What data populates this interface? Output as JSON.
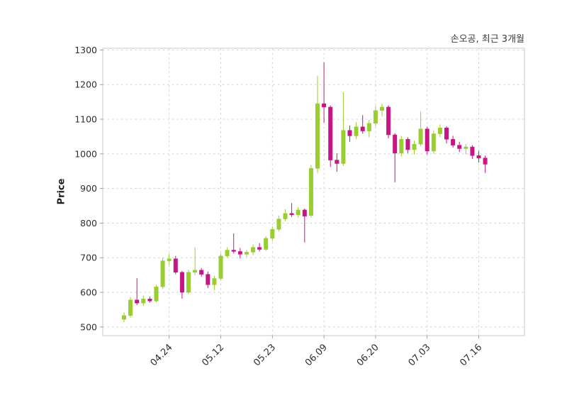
{
  "header": {
    "title": "손오공, 최근 3개월"
  },
  "chart_data": {
    "type": "candlestick",
    "title": "손오공, 최근 3개월",
    "ylabel": "Price",
    "ylim": [
      475,
      1305
    ],
    "yticks": [
      500,
      600,
      700,
      800,
      900,
      1000,
      1100,
      1200,
      1300
    ],
    "xticks": [
      {
        "index": 7,
        "label": "04.24"
      },
      {
        "index": 15,
        "label": "05.12"
      },
      {
        "index": 23,
        "label": "05.23"
      },
      {
        "index": 31,
        "label": "06.09"
      },
      {
        "index": 39,
        "label": "06.20"
      },
      {
        "index": 47,
        "label": "07.03"
      },
      {
        "index": 55,
        "label": "07.16"
      }
    ],
    "grid": true,
    "legend_position": "none",
    "colors": {
      "up": "#9ACD32",
      "down": "#C71585",
      "grid": "#cccccc",
      "border": "#c8c8c8",
      "axis_text": "#2f2f2f",
      "tick_mark": "#8a8a8a",
      "background": "#ffffff"
    },
    "ohlc": [
      [
        522,
        542,
        514,
        533
      ],
      [
        533,
        586,
        527,
        578
      ],
      [
        578,
        641,
        563,
        569
      ],
      [
        569,
        590,
        561,
        581
      ],
      [
        581,
        588,
        570,
        575
      ],
      [
        575,
        622,
        571,
        616
      ],
      [
        616,
        700,
        610,
        691
      ],
      [
        691,
        712,
        680,
        697
      ],
      [
        697,
        705,
        652,
        658
      ],
      [
        658,
        662,
        582,
        600
      ],
      [
        600,
        665,
        595,
        658
      ],
      [
        658,
        730,
        650,
        664
      ],
      [
        664,
        670,
        645,
        652
      ],
      [
        652,
        660,
        612,
        622
      ],
      [
        622,
        648,
        606,
        640
      ],
      [
        640,
        712,
        635,
        705
      ],
      [
        705,
        730,
        700,
        722
      ],
      [
        722,
        770,
        712,
        718
      ],
      [
        718,
        728,
        698,
        710
      ],
      [
        710,
        722,
        702,
        716
      ],
      [
        716,
        738,
        708,
        730
      ],
      [
        730,
        742,
        718,
        724
      ],
      [
        724,
        762,
        720,
        756
      ],
      [
        756,
        790,
        748,
        782
      ],
      [
        782,
        822,
        776,
        812
      ],
      [
        812,
        840,
        806,
        828
      ],
      [
        828,
        858,
        818,
        824
      ],
      [
        824,
        846,
        816,
        838
      ],
      [
        838,
        842,
        744,
        820
      ],
      [
        822,
        968,
        816,
        958
      ],
      [
        958,
        1225,
        945,
        1145
      ],
      [
        1145,
        1265,
        1090,
        1135
      ],
      [
        1135,
        1140,
        962,
        982
      ],
      [
        982,
        1002,
        948,
        972
      ],
      [
        972,
        1178,
        965,
        1068
      ],
      [
        1068,
        1082,
        1035,
        1052
      ],
      [
        1052,
        1092,
        1042,
        1078
      ],
      [
        1078,
        1112,
        1058,
        1066
      ],
      [
        1066,
        1098,
        1048,
        1088
      ],
      [
        1088,
        1138,
        1080,
        1125
      ],
      [
        1125,
        1145,
        1108,
        1135
      ],
      [
        1135,
        1140,
        1045,
        1055
      ],
      [
        1055,
        1060,
        918,
        1002
      ],
      [
        1002,
        1052,
        992,
        1042
      ],
      [
        1042,
        1048,
        1002,
        1012
      ],
      [
        1012,
        1038,
        998,
        1028
      ],
      [
        1028,
        1122,
        1022,
        1072
      ],
      [
        1072,
        1078,
        998,
        1008
      ],
      [
        1008,
        1068,
        1000,
        1058
      ],
      [
        1058,
        1085,
        1048,
        1075
      ],
      [
        1075,
        1080,
        1030,
        1042
      ],
      [
        1042,
        1052,
        1018,
        1025
      ],
      [
        1025,
        1035,
        1005,
        1015
      ],
      [
        1015,
        1028,
        998,
        1020
      ],
      [
        1020,
        1025,
        985,
        995
      ],
      [
        995,
        1008,
        975,
        988
      ],
      [
        988,
        995,
        945,
        970
      ]
    ]
  }
}
